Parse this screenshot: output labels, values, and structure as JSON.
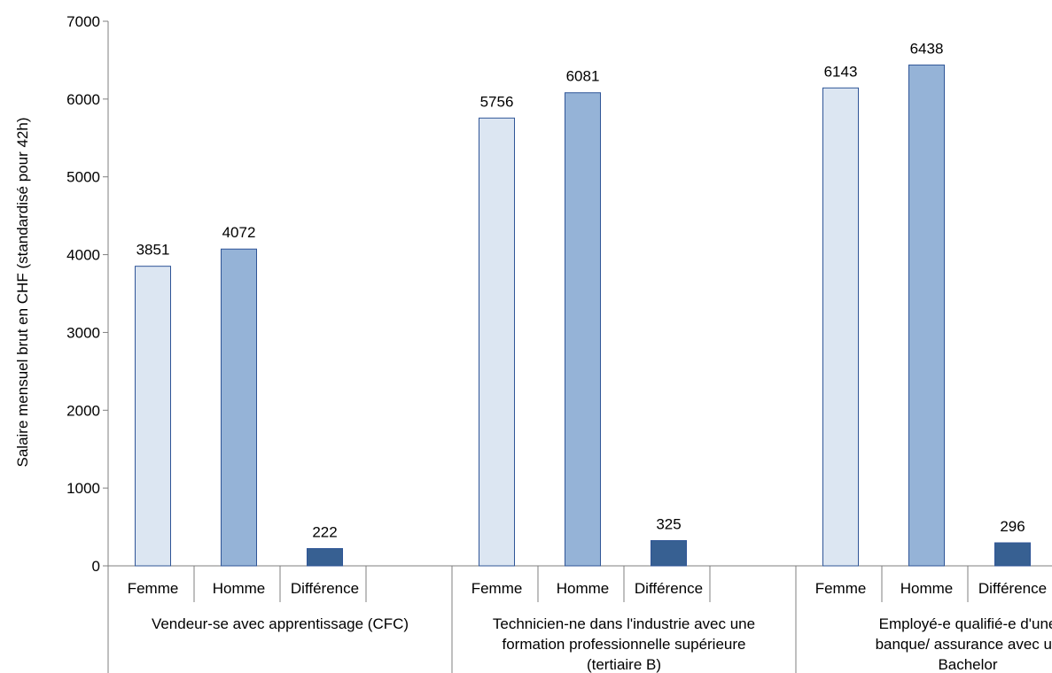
{
  "chart_data": {
    "type": "bar",
    "ylabel": "Salaire mensuel brut en CHF (standardisé pour 42h)",
    "ylim": [
      0,
      7000
    ],
    "yticks": [
      0,
      1000,
      2000,
      3000,
      4000,
      5000,
      6000,
      7000
    ],
    "grid": false,
    "groups": [
      {
        "name": "Vendeur-se avec apprentissage (CFC)",
        "lines": [
          "Vendeur-se avec apprentissage (CFC)"
        ],
        "bars": [
          {
            "label": "Femme",
            "value": 3851
          },
          {
            "label": "Homme",
            "value": 4072
          },
          {
            "label": "Différence",
            "value": 222
          }
        ]
      },
      {
        "name": "Technicien-ne dans l'industrie avec une formation professionnelle supérieure (tertiaire B)",
        "lines": [
          "Technicien-ne dans l'industrie avec une",
          "formation professionnelle supérieure",
          "(tertiaire B)"
        ],
        "bars": [
          {
            "label": "Femme",
            "value": 5756
          },
          {
            "label": "Homme",
            "value": 6081
          },
          {
            "label": "Différence",
            "value": 325
          }
        ]
      },
      {
        "name": "Employé-e qualifié-e d'une banque/ assurance avec un Bachelor",
        "lines": [
          "Employé-e qualifié-e d'une",
          "banque/ assurance avec un",
          "Bachelor"
        ],
        "bars": [
          {
            "label": "Femme",
            "value": 6143
          },
          {
            "label": "Homme",
            "value": 6438
          },
          {
            "label": "Différence",
            "value": 296
          }
        ]
      }
    ],
    "colors": {
      "Femme": "#dce6f2",
      "Homme": "#95b3d7",
      "Différence": "#376092",
      "bar_border": "#2f5597"
    }
  }
}
